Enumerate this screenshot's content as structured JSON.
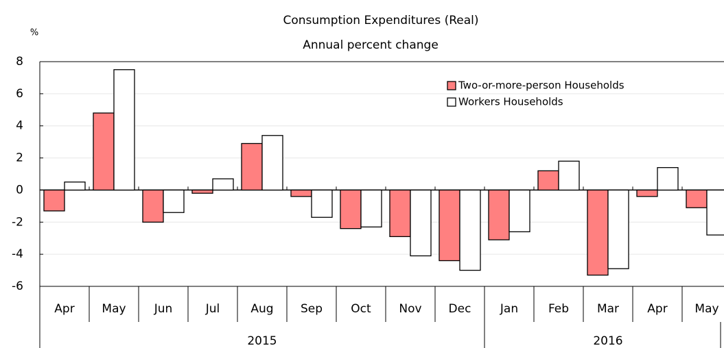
{
  "chart_data": {
    "type": "bar",
    "title": "Consumption Expenditures (Real)",
    "subtitle": "Annual percent change",
    "y_unit": "%",
    "categories": [
      "Apr",
      "May",
      "Jun",
      "Jul",
      "Aug",
      "Sep",
      "Oct",
      "Nov",
      "Dec",
      "Jan",
      "Feb",
      "Mar",
      "Apr",
      "May"
    ],
    "x_groups": [
      {
        "label": "2015",
        "categories": 9
      },
      {
        "label": "2016",
        "categories": 5
      }
    ],
    "series": [
      {
        "name": "Two-or-more-person Households",
        "color": "#ff8080",
        "values": [
          -1.3,
          4.8,
          -2.0,
          -0.2,
          2.9,
          -0.4,
          -2.4,
          -2.9,
          -4.4,
          -3.1,
          1.2,
          -5.3,
          -0.4,
          -1.1
        ]
      },
      {
        "name": "Workers Households",
        "color": "#ffffff",
        "values": [
          0.5,
          7.5,
          -1.4,
          0.7,
          3.4,
          -1.7,
          -2.3,
          -4.1,
          -5.0,
          -2.6,
          1.8,
          -4.9,
          1.4,
          -2.8
        ]
      }
    ],
    "ylim": [
      -6,
      8
    ],
    "yticks": [
      8,
      6,
      4,
      2,
      0,
      -2,
      -4,
      -6
    ],
    "grid": true,
    "legend": "upper right"
  }
}
